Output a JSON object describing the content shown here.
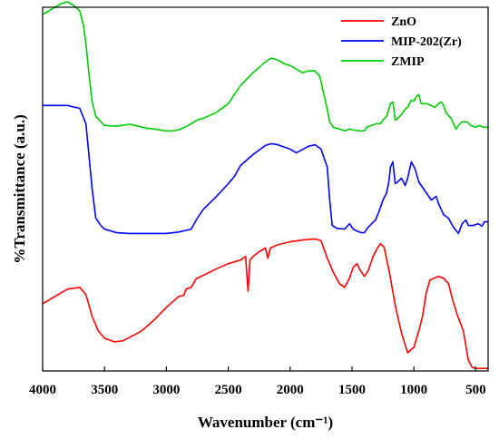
{
  "chart_data": {
    "type": "line",
    "xlabel": "Wavenumber (cm⁻¹)",
    "ylabel": "%Transmittance (a.u.)",
    "xlim": [
      4000,
      400
    ],
    "x_reversed": true,
    "ylim": [
      0,
      100
    ],
    "y_ticks_shown": false,
    "x_ticks": [
      4000,
      3500,
      3000,
      2500,
      2000,
      1500,
      1000,
      500
    ],
    "x_tick_labels": [
      "4000",
      "3500",
      "3000",
      "2500",
      "2000",
      "1500",
      "1000",
      "500"
    ],
    "legend_position": "top-right",
    "grid": false,
    "series": [
      {
        "name": "ZnO",
        "color": "#ff0000",
        "points": [
          [
            4000,
            18.5
          ],
          [
            3900,
            20.5
          ],
          [
            3800,
            22.5
          ],
          [
            3700,
            23.0
          ],
          [
            3650,
            21.0
          ],
          [
            3600,
            15.0
          ],
          [
            3550,
            11.0
          ],
          [
            3500,
            9.0
          ],
          [
            3420,
            8.0
          ],
          [
            3350,
            8.3
          ],
          [
            3200,
            11.0
          ],
          [
            3100,
            14.0
          ],
          [
            3000,
            17.5
          ],
          [
            2900,
            20.5
          ],
          [
            2860,
            20.8
          ],
          [
            2840,
            22.5
          ],
          [
            2800,
            23.0
          ],
          [
            2760,
            25.3
          ],
          [
            2600,
            28.0
          ],
          [
            2500,
            29.5
          ],
          [
            2400,
            30.5
          ],
          [
            2360,
            31.5
          ],
          [
            2340,
            22.0
          ],
          [
            2325,
            30.5
          ],
          [
            2300,
            31.5
          ],
          [
            2250,
            32.8
          ],
          [
            2200,
            33.8
          ],
          [
            2180,
            31.0
          ],
          [
            2160,
            33.8
          ],
          [
            2100,
            34.7
          ],
          [
            2000,
            35.5
          ],
          [
            1900,
            36.0
          ],
          [
            1800,
            36.3
          ],
          [
            1750,
            35.8
          ],
          [
            1700,
            31.0
          ],
          [
            1650,
            27.0
          ],
          [
            1600,
            24.0
          ],
          [
            1560,
            23.0
          ],
          [
            1520,
            25.5
          ],
          [
            1490,
            28.5
          ],
          [
            1460,
            29.5
          ],
          [
            1430,
            27.5
          ],
          [
            1400,
            26.0
          ],
          [
            1370,
            27.5
          ],
          [
            1330,
            31.5
          ],
          [
            1300,
            33.5
          ],
          [
            1270,
            35.0
          ],
          [
            1240,
            34.0
          ],
          [
            1200,
            27.5
          ],
          [
            1150,
            18.0
          ],
          [
            1100,
            10.5
          ],
          [
            1050,
            5.0
          ],
          [
            1000,
            6.5
          ],
          [
            960,
            11.0
          ],
          [
            930,
            15.0
          ],
          [
            900,
            21.5
          ],
          [
            870,
            25.0
          ],
          [
            830,
            25.6
          ],
          [
            800,
            26.0
          ],
          [
            760,
            25.5
          ],
          [
            720,
            24.0
          ],
          [
            690,
            20.0
          ],
          [
            650,
            15.5
          ],
          [
            600,
            11.0
          ],
          [
            560,
            3.0
          ],
          [
            530,
            1.0
          ],
          [
            500,
            0.7
          ],
          [
            400,
            0.7
          ]
        ]
      },
      {
        "name": "MIP-202(Zr)",
        "color": "#0000ff",
        "points": [
          [
            4000,
            73.0
          ],
          [
            3800,
            73.0
          ],
          [
            3700,
            72.2
          ],
          [
            3650,
            68.0
          ],
          [
            3600,
            50.0
          ],
          [
            3570,
            42.0
          ],
          [
            3530,
            40.0
          ],
          [
            3500,
            39.0
          ],
          [
            3400,
            38.0
          ],
          [
            3300,
            37.8
          ],
          [
            3100,
            37.8
          ],
          [
            3000,
            37.8
          ],
          [
            2900,
            38.2
          ],
          [
            2800,
            39.0
          ],
          [
            2750,
            42.0
          ],
          [
            2700,
            44.5
          ],
          [
            2600,
            47.8
          ],
          [
            2500,
            51.5
          ],
          [
            2450,
            53.5
          ],
          [
            2400,
            56.5
          ],
          [
            2300,
            59.5
          ],
          [
            2200,
            62.0
          ],
          [
            2150,
            62.5
          ],
          [
            2100,
            62.2
          ],
          [
            2000,
            61.0
          ],
          [
            1950,
            60.0
          ],
          [
            1850,
            61.8
          ],
          [
            1800,
            62.2
          ],
          [
            1750,
            61.0
          ],
          [
            1700,
            56.0
          ],
          [
            1680,
            47.0
          ],
          [
            1660,
            40.0
          ],
          [
            1620,
            39.2
          ],
          [
            1560,
            39.0
          ],
          [
            1520,
            40.5
          ],
          [
            1490,
            39.0
          ],
          [
            1450,
            38.3
          ],
          [
            1420,
            38.0
          ],
          [
            1400,
            38.0
          ],
          [
            1370,
            39.5
          ],
          [
            1340,
            40.5
          ],
          [
            1310,
            41.5
          ],
          [
            1280,
            44.0
          ],
          [
            1250,
            47.0
          ],
          [
            1220,
            49.0
          ],
          [
            1200,
            52.5
          ],
          [
            1190,
            56.0
          ],
          [
            1170,
            57.5
          ],
          [
            1150,
            51.5
          ],
          [
            1130,
            52.0
          ],
          [
            1100,
            53.0
          ],
          [
            1070,
            51.0
          ],
          [
            1050,
            53.0
          ],
          [
            1020,
            57.5
          ],
          [
            990,
            55.5
          ],
          [
            960,
            52.0
          ],
          [
            930,
            50.5
          ],
          [
            900,
            49.0
          ],
          [
            860,
            47.0
          ],
          [
            820,
            48.0
          ],
          [
            800,
            46.0
          ],
          [
            760,
            43.0
          ],
          [
            720,
            42.0
          ],
          [
            680,
            39.5
          ],
          [
            640,
            37.8
          ],
          [
            610,
            40.5
          ],
          [
            580,
            41.5
          ],
          [
            560,
            40.0
          ],
          [
            520,
            40.0
          ],
          [
            480,
            40.5
          ],
          [
            450,
            39.8
          ],
          [
            430,
            41.0
          ],
          [
            400,
            41.0
          ]
        ]
      },
      {
        "name": "ZMIP",
        "color": "#00cc00",
        "points": [
          [
            4000,
            98.0
          ],
          [
            3900,
            100.0
          ],
          [
            3850,
            101.0
          ],
          [
            3800,
            101.5
          ],
          [
            3750,
            100.5
          ],
          [
            3700,
            99.0
          ],
          [
            3670,
            95.0
          ],
          [
            3650,
            90.0
          ],
          [
            3620,
            80.0
          ],
          [
            3600,
            74.0
          ],
          [
            3570,
            70.0
          ],
          [
            3530,
            68.5
          ],
          [
            3500,
            67.5
          ],
          [
            3400,
            67.3
          ],
          [
            3300,
            67.8
          ],
          [
            3250,
            67.5
          ],
          [
            3200,
            67.0
          ],
          [
            3100,
            66.5
          ],
          [
            3000,
            66.0
          ],
          [
            2950,
            66.0
          ],
          [
            2900,
            66.3
          ],
          [
            2850,
            67.0
          ],
          [
            2800,
            68.0
          ],
          [
            2750,
            69.0
          ],
          [
            2700,
            69.5
          ],
          [
            2600,
            71.0
          ],
          [
            2500,
            73.5
          ],
          [
            2450,
            76.0
          ],
          [
            2400,
            78.5
          ],
          [
            2300,
            82.0
          ],
          [
            2200,
            85.0
          ],
          [
            2150,
            86.0
          ],
          [
            2100,
            85.5
          ],
          [
            2050,
            84.5
          ],
          [
            2000,
            84.0
          ],
          [
            1950,
            83.0
          ],
          [
            1900,
            82.0
          ],
          [
            1850,
            82.5
          ],
          [
            1800,
            82.5
          ],
          [
            1760,
            81.0
          ],
          [
            1720,
            75.0
          ],
          [
            1700,
            72.0
          ],
          [
            1680,
            68.5
          ],
          [
            1650,
            67.0
          ],
          [
            1600,
            66.5
          ],
          [
            1560,
            66.0
          ],
          [
            1520,
            66.5
          ],
          [
            1480,
            66.2
          ],
          [
            1440,
            66.0
          ],
          [
            1400,
            66.0
          ],
          [
            1380,
            67.0
          ],
          [
            1340,
            67.5
          ],
          [
            1300,
            68.0
          ],
          [
            1270,
            68.0
          ],
          [
            1250,
            69.0
          ],
          [
            1220,
            70.0
          ],
          [
            1190,
            73.5
          ],
          [
            1170,
            74.0
          ],
          [
            1150,
            69.0
          ],
          [
            1130,
            69.5
          ],
          [
            1100,
            70.5
          ],
          [
            1070,
            72.0
          ],
          [
            1050,
            72.5
          ],
          [
            1020,
            74.5
          ],
          [
            1000,
            74.2
          ],
          [
            980,
            75.5
          ],
          [
            960,
            76.0
          ],
          [
            940,
            73.5
          ],
          [
            900,
            73.5
          ],
          [
            860,
            73.0
          ],
          [
            830,
            72.5
          ],
          [
            800,
            73.5
          ],
          [
            780,
            74.0
          ],
          [
            760,
            73.0
          ],
          [
            740,
            71.0
          ],
          [
            700,
            69.5
          ],
          [
            660,
            66.5
          ],
          [
            640,
            67.5
          ],
          [
            610,
            68.5
          ],
          [
            570,
            68.5
          ],
          [
            540,
            67.5
          ],
          [
            500,
            67.0
          ],
          [
            470,
            67.5
          ],
          [
            440,
            67.0
          ],
          [
            400,
            67.0
          ]
        ]
      }
    ]
  }
}
